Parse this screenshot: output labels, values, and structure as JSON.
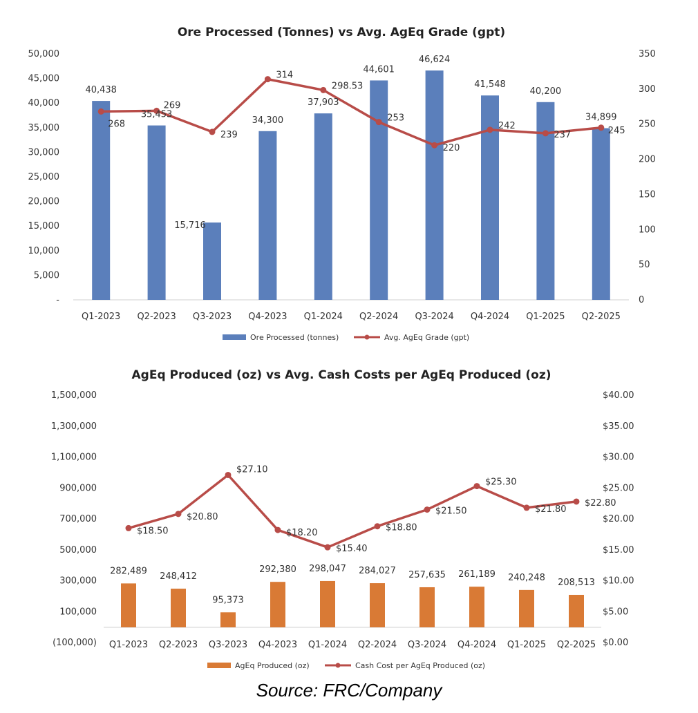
{
  "source": "Source: FRC/Company",
  "chart_data": [
    {
      "type": "bar",
      "title": "Ore Processed (Tonnes) vs Avg. AgEq Grade (gpt)",
      "categories": [
        "Q1-2023",
        "Q2-2023",
        "Q3-2023",
        "Q4-2023",
        "Q1-2024",
        "Q2-2024",
        "Q3-2024",
        "Q4-2024",
        "Q1-2025",
        "Q2-2025"
      ],
      "left_axis": {
        "ylim": [
          0,
          50000
        ],
        "ticks": [
          "-",
          "5,000",
          "10,000",
          "15,000",
          "20,000",
          "25,000",
          "30,000",
          "35,000",
          "40,000",
          "45,000",
          "50,000"
        ]
      },
      "right_axis": {
        "ylim": [
          0,
          350
        ],
        "ticks": [
          "0",
          "50",
          "100",
          "150",
          "200",
          "250",
          "300",
          "350"
        ]
      },
      "series": [
        {
          "name": "Ore Processed (tonnes)",
          "type": "bar",
          "axis": "left",
          "color": "#5b7fbb",
          "values": [
            40438,
            35453,
            15716,
            34300,
            37903,
            44601,
            46624,
            41548,
            40200,
            34899
          ],
          "labels": [
            "40,438",
            "35,453",
            "15,716",
            "34,300",
            "37,903",
            "44,601",
            "46,624",
            "41,548",
            "40,200",
            "34,899"
          ]
        },
        {
          "name": "Avg. AgEq Grade (gpt)",
          "type": "line",
          "axis": "right",
          "color": "#b84c48",
          "values": [
            268,
            269,
            239,
            314,
            298.53,
            253,
            220,
            242,
            237,
            245
          ],
          "labels": [
            "268",
            "269",
            "239",
            "314",
            "298.53",
            "253",
            "220",
            "242",
            "237",
            "245"
          ]
        }
      ],
      "legend": "bottom"
    },
    {
      "type": "bar",
      "title": "AgEq Produced (oz) vs Avg. Cash Costs per AgEq Produced (oz)",
      "categories": [
        "Q1-2023",
        "Q2-2023",
        "Q3-2023",
        "Q4-2023",
        "Q1-2024",
        "Q2-2024",
        "Q3-2024",
        "Q4-2024",
        "Q1-2025",
        "Q2-2025"
      ],
      "left_axis": {
        "ylim": [
          -100000,
          1500000
        ],
        "ticks": [
          "(100,000)",
          "100,000",
          "300,000",
          "500,000",
          "700,000",
          "900,000",
          "1,100,000",
          "1,300,000",
          "1,500,000"
        ]
      },
      "right_axis": {
        "ylim": [
          0,
          40
        ],
        "ticks": [
          "$0.00",
          "$5.00",
          "$10.00",
          "$15.00",
          "$20.00",
          "$25.00",
          "$30.00",
          "$35.00",
          "$40.00"
        ]
      },
      "series": [
        {
          "name": "AgEq Produced (oz)",
          "type": "bar",
          "axis": "left",
          "color": "#d97a35",
          "values": [
            282489,
            248412,
            95373,
            292380,
            298047,
            284027,
            257635,
            261189,
            240248,
            208513
          ],
          "labels": [
            "282,489",
            "248,412",
            "95,373",
            "292,380",
            "298,047",
            "284,027",
            "257,635",
            "261,189",
            "240,248",
            "208,513"
          ]
        },
        {
          "name": "Cash Cost per AgEq Produced (oz)",
          "type": "line",
          "axis": "right",
          "color": "#b84c48",
          "values": [
            18.5,
            20.8,
            27.1,
            18.2,
            15.4,
            18.8,
            21.5,
            25.3,
            21.8,
            22.8
          ],
          "labels": [
            "$18.50",
            "$20.80",
            "$27.10",
            "$18.20",
            "$15.40",
            "$18.80",
            "$21.50",
            "$25.30",
            "$21.80",
            "$22.80"
          ]
        }
      ],
      "legend": "bottom"
    }
  ]
}
